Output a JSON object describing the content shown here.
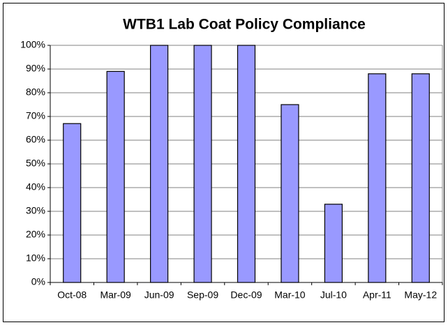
{
  "chart_data": {
    "type": "bar",
    "title": "WTB1 Lab Coat Policy Compliance",
    "categories": [
      "Oct-08",
      "Mar-09",
      "Jun-09",
      "Sep-09",
      "Dec-09",
      "Mar-10",
      "Jul-10",
      "Apr-11",
      "May-12"
    ],
    "values": [
      67,
      89,
      100,
      100,
      100,
      75,
      33,
      88,
      88
    ],
    "color": "#9999ff",
    "ylim": [
      0,
      100
    ],
    "yticks": [
      {
        "value": 0,
        "label": "0%"
      },
      {
        "value": 10,
        "label": "10%"
      },
      {
        "value": 20,
        "label": "20%"
      },
      {
        "value": 30,
        "label": "30%"
      },
      {
        "value": 40,
        "label": "40%"
      },
      {
        "value": 50,
        "label": "50%"
      },
      {
        "value": 60,
        "label": "60%"
      },
      {
        "value": 70,
        "label": "70%"
      },
      {
        "value": 80,
        "label": "80%"
      },
      {
        "value": 90,
        "label": "90%"
      },
      {
        "value": 100,
        "label": "100%"
      }
    ],
    "grid": true
  }
}
